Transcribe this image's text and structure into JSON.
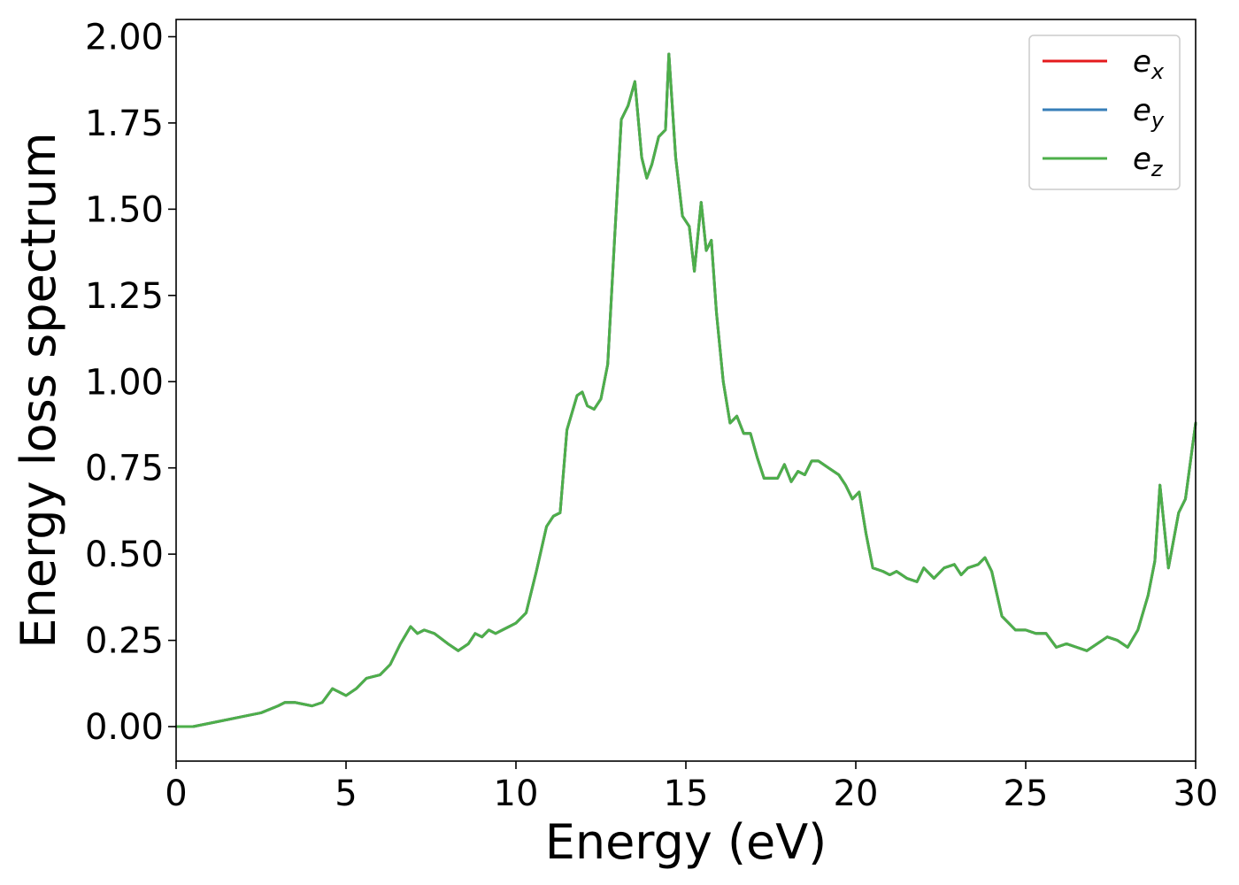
{
  "chart_data": {
    "type": "line",
    "xlabel": "Energy (eV)",
    "ylabel": "Energy loss spectrum",
    "xlim": [
      0,
      30
    ],
    "ylim": [
      -0.1,
      2.05
    ],
    "xticks": [
      0,
      5,
      10,
      15,
      20,
      25,
      30
    ],
    "xtick_labels": [
      "0",
      "5",
      "10",
      "15",
      "20",
      "25",
      "30"
    ],
    "yticks": [
      0.0,
      0.25,
      0.5,
      0.75,
      1.0,
      1.25,
      1.5,
      1.75,
      2.0
    ],
    "ytick_labels": [
      "0.00",
      "0.25",
      "0.50",
      "0.75",
      "1.00",
      "1.25",
      "1.50",
      "1.75",
      "2.00"
    ],
    "grid": false,
    "legend_position": "top-right",
    "x": [
      0,
      0.5,
      1.0,
      1.5,
      2.0,
      2.5,
      3.0,
      3.2,
      3.5,
      4.0,
      4.3,
      4.6,
      5.0,
      5.3,
      5.6,
      6.0,
      6.3,
      6.6,
      6.9,
      7.1,
      7.3,
      7.6,
      8.0,
      8.3,
      8.6,
      8.8,
      9.0,
      9.2,
      9.4,
      9.6,
      9.8,
      10.0,
      10.3,
      10.6,
      10.9,
      11.1,
      11.3,
      11.5,
      11.8,
      11.95,
      12.1,
      12.3,
      12.5,
      12.7,
      12.9,
      13.1,
      13.3,
      13.5,
      13.7,
      13.85,
      14.0,
      14.2,
      14.4,
      14.5,
      14.7,
      14.9,
      15.1,
      15.25,
      15.45,
      15.6,
      15.75,
      15.9,
      16.1,
      16.3,
      16.5,
      16.7,
      16.9,
      17.1,
      17.3,
      17.5,
      17.7,
      17.9,
      18.1,
      18.3,
      18.5,
      18.7,
      18.9,
      19.2,
      19.5,
      19.7,
      19.9,
      20.1,
      20.3,
      20.5,
      20.8,
      21.0,
      21.2,
      21.5,
      21.8,
      22.0,
      22.3,
      22.6,
      22.9,
      23.1,
      23.3,
      23.6,
      23.8,
      24.0,
      24.3,
      24.7,
      25.0,
      25.3,
      25.6,
      25.9,
      26.2,
      26.5,
      26.8,
      27.1,
      27.4,
      27.7,
      28.0,
      28.3,
      28.6,
      28.8,
      28.95,
      29.2,
      29.5,
      29.7,
      30.0
    ],
    "series": [
      {
        "name": "e_x",
        "color": "#e41a1c",
        "values": [
          0.0,
          0.0,
          0.01,
          0.02,
          0.03,
          0.04,
          0.06,
          0.07,
          0.07,
          0.06,
          0.07,
          0.11,
          0.09,
          0.11,
          0.14,
          0.15,
          0.18,
          0.24,
          0.29,
          0.27,
          0.28,
          0.27,
          0.24,
          0.22,
          0.24,
          0.27,
          0.26,
          0.28,
          0.27,
          0.28,
          0.29,
          0.3,
          0.33,
          0.45,
          0.58,
          0.61,
          0.62,
          0.86,
          0.96,
          0.97,
          0.93,
          0.92,
          0.95,
          1.05,
          1.41,
          1.76,
          1.8,
          1.87,
          1.65,
          1.59,
          1.63,
          1.71,
          1.73,
          1.95,
          1.65,
          1.48,
          1.45,
          1.32,
          1.52,
          1.38,
          1.41,
          1.2,
          1.0,
          0.88,
          0.9,
          0.85,
          0.85,
          0.78,
          0.72,
          0.72,
          0.72,
          0.76,
          0.71,
          0.74,
          0.73,
          0.77,
          0.77,
          0.75,
          0.73,
          0.7,
          0.66,
          0.68,
          0.56,
          0.46,
          0.45,
          0.44,
          0.45,
          0.43,
          0.42,
          0.46,
          0.43,
          0.46,
          0.47,
          0.44,
          0.46,
          0.47,
          0.49,
          0.45,
          0.32,
          0.28,
          0.28,
          0.27,
          0.27,
          0.23,
          0.24,
          0.23,
          0.22,
          0.24,
          0.26,
          0.25,
          0.23,
          0.28,
          0.38,
          0.48,
          0.7,
          0.46,
          0.62,
          0.66,
          0.88
        ]
      },
      {
        "name": "e_y",
        "color": "#377eb8",
        "values": [
          0.0,
          0.0,
          0.01,
          0.02,
          0.03,
          0.04,
          0.06,
          0.07,
          0.07,
          0.06,
          0.07,
          0.11,
          0.09,
          0.11,
          0.14,
          0.15,
          0.18,
          0.24,
          0.29,
          0.27,
          0.28,
          0.27,
          0.24,
          0.22,
          0.24,
          0.27,
          0.26,
          0.28,
          0.27,
          0.28,
          0.29,
          0.3,
          0.33,
          0.45,
          0.58,
          0.61,
          0.62,
          0.86,
          0.96,
          0.97,
          0.93,
          0.92,
          0.95,
          1.05,
          1.41,
          1.76,
          1.8,
          1.87,
          1.65,
          1.59,
          1.63,
          1.71,
          1.73,
          1.95,
          1.65,
          1.48,
          1.45,
          1.32,
          1.52,
          1.38,
          1.41,
          1.2,
          1.0,
          0.88,
          0.9,
          0.85,
          0.85,
          0.78,
          0.72,
          0.72,
          0.72,
          0.76,
          0.71,
          0.74,
          0.73,
          0.77,
          0.77,
          0.75,
          0.73,
          0.7,
          0.66,
          0.68,
          0.56,
          0.46,
          0.45,
          0.44,
          0.45,
          0.43,
          0.42,
          0.46,
          0.43,
          0.46,
          0.47,
          0.44,
          0.46,
          0.47,
          0.49,
          0.45,
          0.32,
          0.28,
          0.28,
          0.27,
          0.27,
          0.23,
          0.24,
          0.23,
          0.22,
          0.24,
          0.26,
          0.25,
          0.23,
          0.28,
          0.38,
          0.48,
          0.7,
          0.46,
          0.62,
          0.66,
          0.88
        ]
      },
      {
        "name": "e_z",
        "color": "#4daf4a",
        "values": [
          0.0,
          0.0,
          0.01,
          0.02,
          0.03,
          0.04,
          0.06,
          0.07,
          0.07,
          0.06,
          0.07,
          0.11,
          0.09,
          0.11,
          0.14,
          0.15,
          0.18,
          0.24,
          0.29,
          0.27,
          0.28,
          0.27,
          0.24,
          0.22,
          0.24,
          0.27,
          0.26,
          0.28,
          0.27,
          0.28,
          0.29,
          0.3,
          0.33,
          0.45,
          0.58,
          0.61,
          0.62,
          0.86,
          0.96,
          0.97,
          0.93,
          0.92,
          0.95,
          1.05,
          1.41,
          1.76,
          1.8,
          1.87,
          1.65,
          1.59,
          1.63,
          1.71,
          1.73,
          1.95,
          1.65,
          1.48,
          1.45,
          1.32,
          1.52,
          1.38,
          1.41,
          1.2,
          1.0,
          0.88,
          0.9,
          0.85,
          0.85,
          0.78,
          0.72,
          0.72,
          0.72,
          0.76,
          0.71,
          0.74,
          0.73,
          0.77,
          0.77,
          0.75,
          0.73,
          0.7,
          0.66,
          0.68,
          0.56,
          0.46,
          0.45,
          0.44,
          0.45,
          0.43,
          0.42,
          0.46,
          0.43,
          0.46,
          0.47,
          0.44,
          0.46,
          0.47,
          0.49,
          0.45,
          0.32,
          0.28,
          0.28,
          0.27,
          0.27,
          0.23,
          0.24,
          0.23,
          0.22,
          0.24,
          0.26,
          0.25,
          0.23,
          0.28,
          0.38,
          0.48,
          0.7,
          0.46,
          0.62,
          0.66,
          0.88
        ]
      }
    ],
    "legend": [
      {
        "base": "e",
        "sub": "x",
        "color": "#e41a1c"
      },
      {
        "base": "e",
        "sub": "y",
        "color": "#377eb8"
      },
      {
        "base": "e",
        "sub": "z",
        "color": "#4daf4a"
      }
    ]
  }
}
